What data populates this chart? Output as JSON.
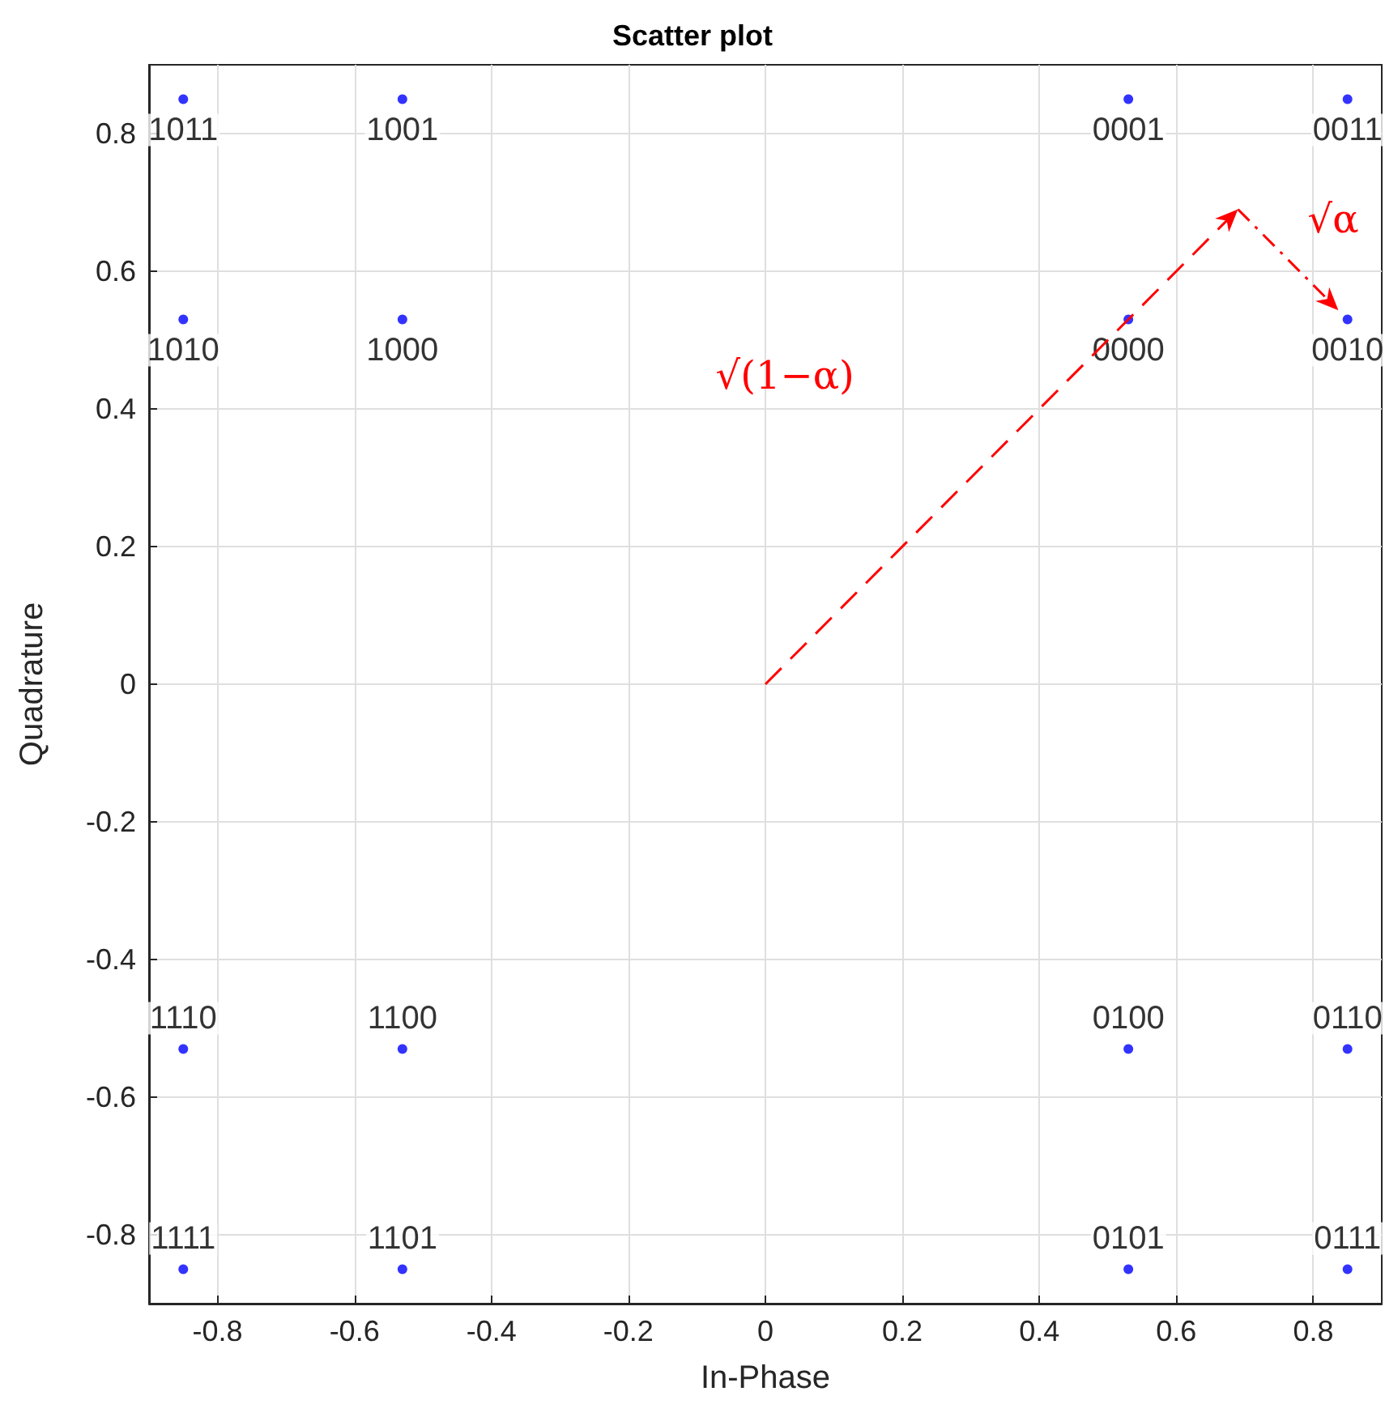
{
  "chart_data": {
    "type": "scatter",
    "title": "Scatter plot",
    "xlabel": "In-Phase",
    "ylabel": "Quadrature",
    "series": [
      {
        "name": "1011",
        "color": "#0000ff",
        "x": [
          -0.85
        ],
        "values": [
          0.85
        ]
      },
      {
        "name": "1001",
        "color": "#0000ff",
        "x": [
          -0.53
        ],
        "values": [
          0.85
        ]
      },
      {
        "name": "0001",
        "color": "#0000ff",
        "x": [
          0.53
        ],
        "values": [
          0.85
        ]
      },
      {
        "name": "0011",
        "color": "#0000ff",
        "x": [
          0.85
        ],
        "values": [
          0.85
        ]
      },
      {
        "name": "1010",
        "color": "#0000ff",
        "x": [
          -0.85
        ],
        "values": [
          0.53
        ]
      },
      {
        "name": "1000",
        "color": "#0000ff",
        "x": [
          -0.53
        ],
        "values": [
          0.53
        ]
      },
      {
        "name": "0000",
        "color": "#0000ff",
        "x": [
          0.53
        ],
        "values": [
          0.53
        ]
      },
      {
        "name": "0010",
        "color": "#0000ff",
        "x": [
          0.85
        ],
        "values": [
          0.53
        ]
      },
      {
        "name": "1110",
        "color": "#0000ff",
        "x": [
          -0.85
        ],
        "values": [
          -0.53
        ]
      },
      {
        "name": "1100",
        "color": "#0000ff",
        "x": [
          -0.53
        ],
        "values": [
          -0.53
        ]
      },
      {
        "name": "0100",
        "color": "#0000ff",
        "x": [
          0.53
        ],
        "values": [
          -0.53
        ]
      },
      {
        "name": "0110",
        "color": "#0000ff",
        "x": [
          0.85
        ],
        "values": [
          -0.53
        ]
      },
      {
        "name": "1111",
        "color": "#0000ff",
        "x": [
          -0.85
        ],
        "values": [
          -0.85
        ]
      },
      {
        "name": "1101",
        "color": "#0000ff",
        "x": [
          -0.53
        ],
        "values": [
          -0.85
        ]
      },
      {
        "name": "0101",
        "color": "#0000ff",
        "x": [
          0.53
        ],
        "values": [
          -0.85
        ]
      },
      {
        "name": "0111",
        "color": "#0000ff",
        "x": [
          0.85
        ],
        "values": [
          -0.85
        ]
      }
    ],
    "xlim": [
      -0.9,
      0.9
    ],
    "ylim": [
      -0.9,
      0.9
    ],
    "xticks": [
      -0.8,
      -0.6,
      -0.4,
      -0.2,
      0,
      0.2,
      0.4,
      0.6,
      0.8
    ],
    "yticks": [
      -0.8,
      -0.6,
      -0.4,
      -0.2,
      0,
      0.2,
      0.4,
      0.6,
      0.8
    ],
    "grid": true,
    "marker": "circle",
    "annotations": [
      "√(1−α)",
      "√α"
    ]
  }
}
